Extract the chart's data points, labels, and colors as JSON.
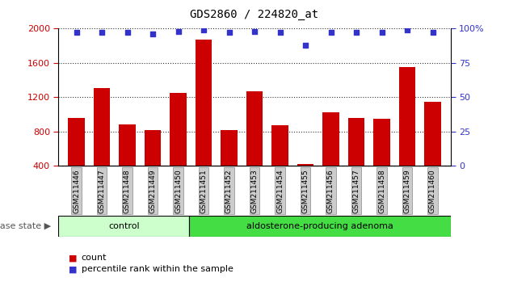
{
  "title": "GDS2860 / 224820_at",
  "samples": [
    "GSM211446",
    "GSM211447",
    "GSM211448",
    "GSM211449",
    "GSM211450",
    "GSM211451",
    "GSM211452",
    "GSM211453",
    "GSM211454",
    "GSM211455",
    "GSM211456",
    "GSM211457",
    "GSM211458",
    "GSM211459",
    "GSM211460"
  ],
  "counts": [
    960,
    1310,
    880,
    820,
    1250,
    1870,
    820,
    1270,
    870,
    420,
    1020,
    960,
    950,
    1550,
    1150
  ],
  "percentiles": [
    97,
    97,
    97,
    96,
    98,
    99,
    97,
    98,
    97,
    88,
    97,
    97,
    97,
    99,
    97
  ],
  "bar_color": "#cc0000",
  "dot_color": "#3333cc",
  "ylim_left": [
    400,
    2000
  ],
  "ylim_right": [
    0,
    100
  ],
  "yticks_left": [
    400,
    800,
    1200,
    1600,
    2000
  ],
  "yticks_right": [
    0,
    25,
    50,
    75,
    100
  ],
  "ytick_right_labels": [
    "0",
    "25",
    "50",
    "75",
    "100%"
  ],
  "control_color": "#ccffcc",
  "adenoma_color": "#44dd44",
  "xlabel_disease": "disease state",
  "legend_items": [
    {
      "label": "count",
      "color": "#cc0000"
    },
    {
      "label": "percentile rank within the sample",
      "color": "#3333cc"
    }
  ],
  "tick_bg_color": "#cccccc",
  "left_tick_color": "#cc0000",
  "right_tick_color": "#3333cc",
  "grid_color": "#333333",
  "n_control": 5,
  "n_total": 15
}
